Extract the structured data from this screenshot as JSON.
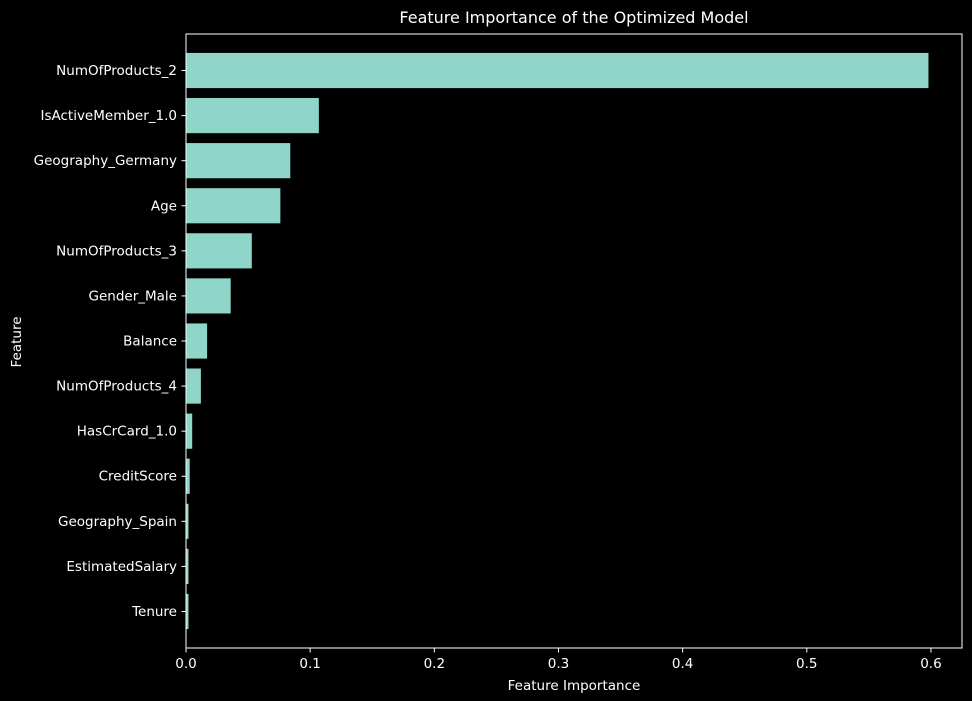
{
  "chart_data": {
    "type": "bar",
    "orientation": "horizontal",
    "title": "Feature Importance of the Optimized Model",
    "xlabel": "Feature Importance",
    "ylabel": "Feature",
    "xlim": [
      0,
      0.625
    ],
    "x_ticks": [
      "0.0",
      "0.1",
      "0.2",
      "0.3",
      "0.4",
      "0.5",
      "0.6"
    ],
    "x_tick_values": [
      0.0,
      0.1,
      0.2,
      0.3,
      0.4,
      0.5,
      0.6
    ],
    "grid": false,
    "legend": "none",
    "categories": [
      "NumOfProducts_2",
      "IsActiveMember_1.0",
      "Geography_Germany",
      "Age",
      "NumOfProducts_3",
      "Gender_Male",
      "Balance",
      "NumOfProducts_4",
      "HasCrCard_1.0",
      "CreditScore",
      "Geography_Spain",
      "EstimatedSalary",
      "Tenure"
    ],
    "values": [
      0.598,
      0.107,
      0.084,
      0.076,
      0.053,
      0.036,
      0.017,
      0.012,
      0.005,
      0.003,
      0.002,
      0.002,
      0.002
    ],
    "colors": {
      "bar": "#8fd5c9",
      "background": "#000000",
      "text": "#ffffff",
      "axis": "#ffffff"
    }
  }
}
